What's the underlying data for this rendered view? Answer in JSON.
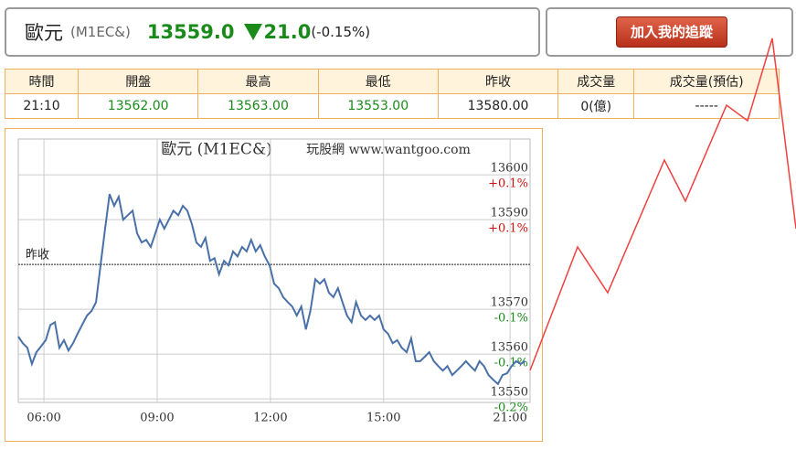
{
  "header": {
    "name": "歐元",
    "code": "(M1EC&)",
    "price": "13559.0",
    "change": "21.0",
    "change_pct": "(-0.15%)",
    "button": "加入我的追蹤"
  },
  "table": {
    "columns": [
      "時間",
      "開盤",
      "最高",
      "最低",
      "昨收",
      "成交量",
      "成交量(預估)"
    ],
    "rows": [
      [
        "21:10",
        "13562.00",
        "13563.00",
        "13553.00",
        "13580.00",
        "0(億)",
        "-----"
      ]
    ]
  },
  "chart_data": {
    "type": "line",
    "title": "歐元 (M1EC&)",
    "subtitle": "玩股網 www.wantgoo.com",
    "x": [
      5.32,
      5.44,
      5.56,
      5.68,
      5.8,
      5.93,
      6.05,
      6.17,
      6.29,
      6.41,
      6.53,
      6.65,
      6.77,
      6.89,
      7.01,
      7.14,
      7.26,
      7.38,
      7.5,
      7.62,
      7.74,
      7.86,
      7.98,
      8.1,
      8.22,
      8.35,
      8.47,
      8.59,
      8.71,
      8.83,
      8.95,
      9.07,
      9.19,
      9.31,
      9.43,
      9.56,
      9.68,
      9.8,
      9.92,
      10.04,
      10.16,
      10.28,
      10.4,
      10.52,
      10.64,
      10.77,
      10.89,
      11.01,
      11.13,
      11.25,
      11.37,
      11.49,
      11.61,
      11.73,
      11.85,
      11.98,
      12.1,
      12.22,
      12.34,
      12.46,
      12.58,
      12.7,
      12.82,
      12.94,
      13.06,
      13.19,
      13.31,
      13.43,
      13.55,
      13.67,
      13.79,
      13.91,
      14.03,
      14.15,
      14.27,
      14.4,
      14.52,
      14.64,
      14.76,
      14.88,
      15.0,
      15.12,
      15.24,
      15.36,
      15.48,
      15.61,
      15.73,
      15.85,
      15.97,
      16.09,
      16.21,
      16.33,
      16.45,
      16.57,
      16.69,
      16.82,
      16.94,
      17.06,
      17.18,
      17.3,
      17.42,
      17.54,
      17.66,
      17.78,
      17.9,
      18.03,
      18.15,
      18.27,
      18.39,
      18.51,
      18.63,
      18.75
    ],
    "values": [
      13563.9,
      13562.4,
      13561.4,
      13557.8,
      13560.4,
      13561.8,
      13563.1,
      13566.5,
      13567.1,
      13561.4,
      13563.1,
      13560.8,
      13562.4,
      13564.5,
      13566.5,
      13568.6,
      13569.6,
      13571.6,
      13579.8,
      13588.0,
      13595.7,
      13593.1,
      13595.1,
      13590.0,
      13591.0,
      13592.0,
      13586.9,
      13584.9,
      13585.5,
      13583.9,
      13586.9,
      13590.0,
      13588.0,
      13590.0,
      13592.0,
      13591.0,
      13593.1,
      13592.0,
      13589.0,
      13584.9,
      13583.9,
      13585.9,
      13580.8,
      13581.4,
      13577.8,
      13580.8,
      13579.8,
      13582.9,
      13581.8,
      13583.9,
      13582.9,
      13585.5,
      13582.9,
      13584.3,
      13581.8,
      13579.8,
      13575.7,
      13574.7,
      13572.7,
      13571.6,
      13570.6,
      13568.6,
      13570.6,
      13565.5,
      13569.6,
      13576.7,
      13575.7,
      13576.7,
      13573.7,
      13572.7,
      13574.7,
      13571.6,
      13568.6,
      13567.1,
      13571.6,
      13568.6,
      13567.6,
      13568.6,
      13567.6,
      13568.6,
      13565.5,
      13564.5,
      13562.4,
      13563.1,
      13561.4,
      13560.4,
      13563.5,
      13558.4,
      13558.4,
      13559.4,
      13560.4,
      13558.4,
      13557.3,
      13556.3,
      13557.3,
      13555.3,
      13556.3,
      13557.3,
      13558.4,
      13557.3,
      13556.3,
      13558.4,
      13557.3,
      13555.3,
      13554.3,
      13553.3,
      13555.3,
      13555.7,
      13557.3,
      13558.4,
      13557.8,
      13558.4
    ],
    "color": "#4a70a8",
    "xlim": [
      5.32,
      18.88
    ],
    "xticks": [
      {
        "value": 6,
        "label": "06:00"
      },
      {
        "value": 9,
        "label": "09:00"
      },
      {
        "value": 12,
        "label": "12:00"
      },
      {
        "value": 15,
        "label": "15:00"
      },
      {
        "value": 18.35,
        "label": "21:00"
      }
    ],
    "ylim": [
      13549.2,
      13608
    ],
    "yticks": [
      13550,
      13560,
      13570,
      13590,
      13600
    ],
    "ytick_pct": [
      "-0.2%",
      "-0.1%",
      "-0.1%",
      "+0.1%",
      "+0.1%"
    ],
    "ref_line": {
      "value": 13580,
      "label": "昨收"
    },
    "grid": true
  }
}
